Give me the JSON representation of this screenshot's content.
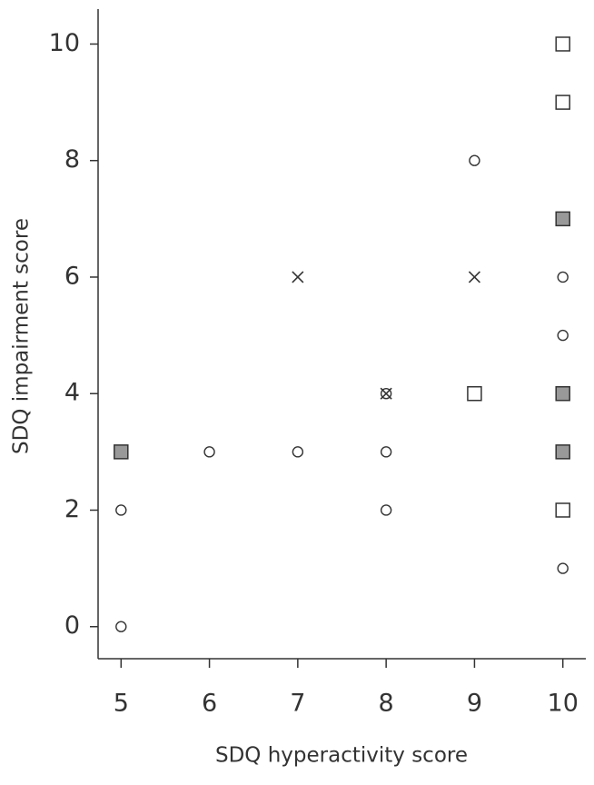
{
  "chart_data": {
    "type": "scatter",
    "x_label": "SDQ hyperactivity score",
    "y_label": "SDQ impairment score",
    "xlim": [
      4.74,
      10.26
    ],
    "xticks": [
      5,
      6,
      7,
      8,
      9,
      10
    ],
    "ylim": [
      -0.55,
      10.6
    ],
    "yticks": [
      0,
      2,
      4,
      6,
      8,
      10
    ],
    "grid": false,
    "series": [
      {
        "marker": "circle",
        "color": "#333333",
        "x": [
          5,
          5,
          6,
          7,
          8,
          8,
          8,
          9,
          10,
          10,
          10
        ],
        "values": [
          0,
          2,
          3,
          3,
          2,
          3,
          4,
          8,
          1,
          5,
          6
        ]
      },
      {
        "marker": "cross",
        "color": "#333333",
        "x": [
          7,
          9,
          8
        ],
        "values": [
          6,
          6,
          4
        ]
      },
      {
        "marker": "square",
        "color": "#333333",
        "x": [
          9,
          10,
          10,
          10
        ],
        "values": [
          4,
          2,
          9,
          10
        ]
      },
      {
        "marker": "filled-square",
        "color": "#999999",
        "x": [
          5,
          10,
          10,
          10
        ],
        "values": [
          3,
          3,
          4,
          7
        ]
      }
    ]
  }
}
